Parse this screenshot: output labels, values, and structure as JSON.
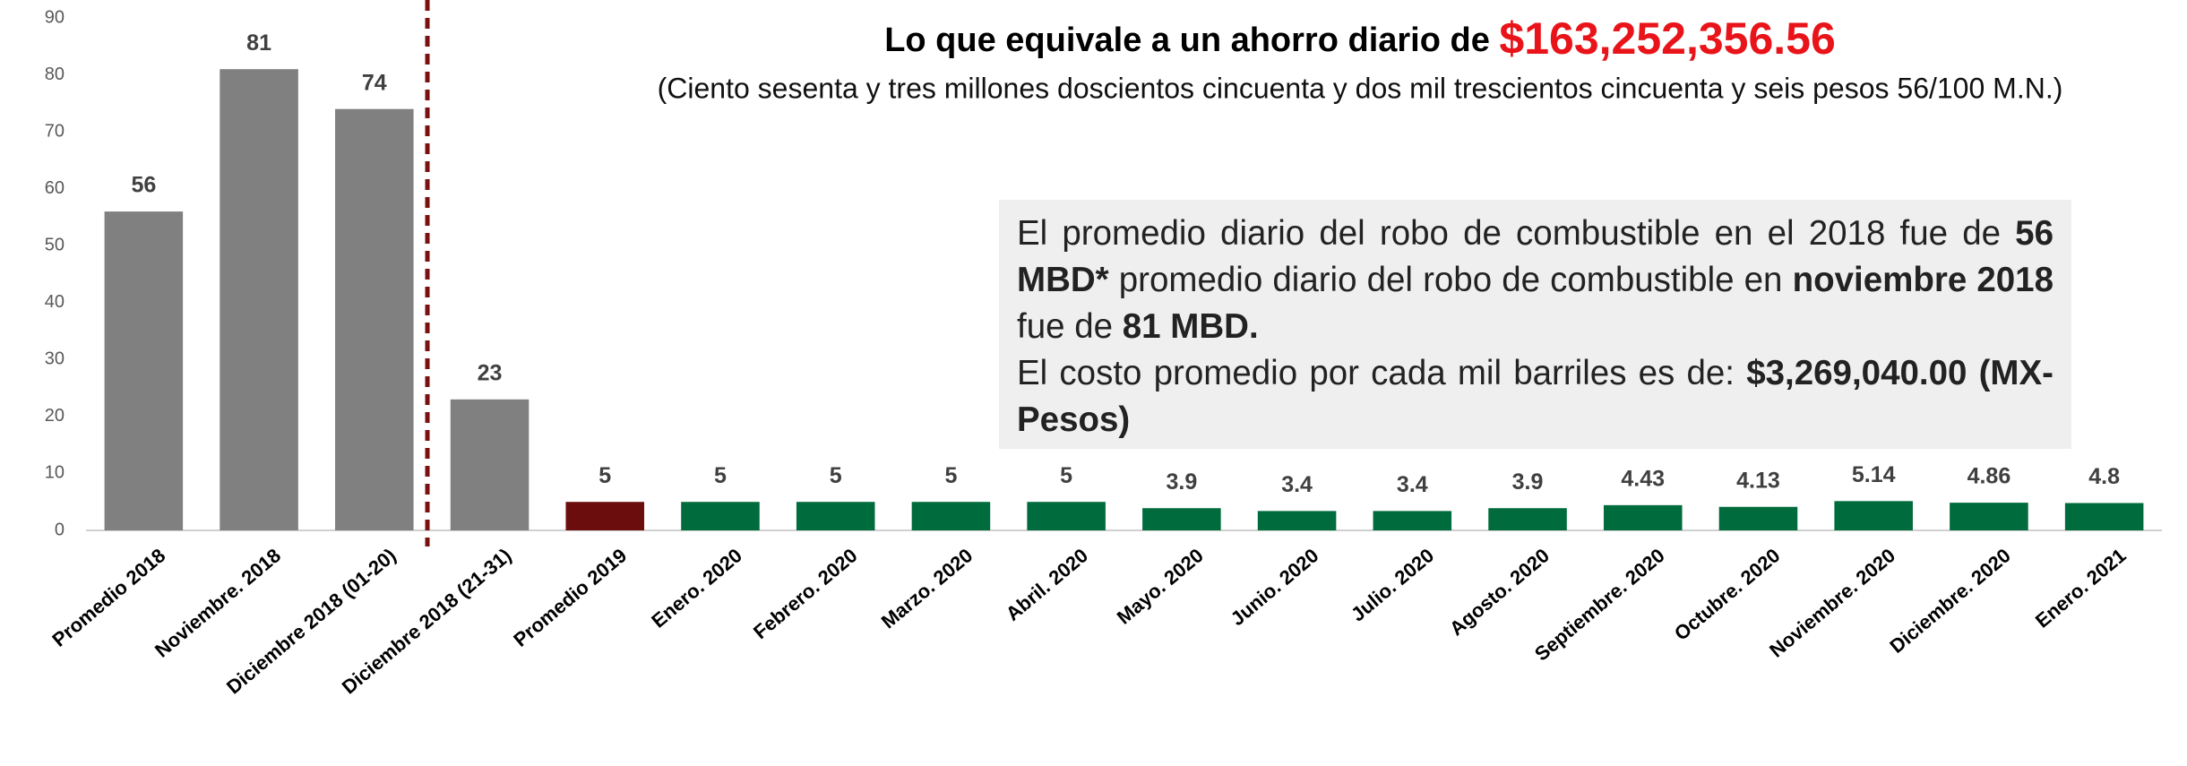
{
  "chart_data": {
    "type": "bar",
    "title": {
      "text": "Lo que equivale a un ahorro diario de ",
      "amount": "$163,252,356.56"
    },
    "subtitle": "(Ciento sesenta y tres millones doscientos cincuenta y dos mil trescientos cincuenta y seis pesos 56/100 M.N.)",
    "note": {
      "paragraph1": [
        "El promedio diario del robo de combustible en el 2018 fue de ",
        "56 MBD*",
        " promedio diario del robo de combustible en ",
        "noviembre 2018",
        " fue de ",
        "81 MBD."
      ],
      "paragraph2": [
        "El costo promedio por cada mil barriles es de: ",
        "$3,269,040.00  (MX-Pesos)"
      ]
    },
    "categories": [
      "Promedio 2018",
      "Noviembre. 2018",
      "Diciembre 2018 (01-20)",
      "Diciembre 2018 (21-31)",
      "Promedio 2019",
      "Enero. 2020",
      "Febrero. 2020",
      "Marzo. 2020",
      "Abril. 2020",
      "Mayo. 2020",
      "Junio. 2020",
      "Julio. 2020",
      "Agosto. 2020",
      "Septiembre. 2020",
      "Octubre. 2020",
      "Noviembre. 2020",
      "Diciembre. 2020",
      "Enero. 2021"
    ],
    "values": [
      56,
      81,
      74,
      23,
      5,
      5,
      5,
      5,
      5,
      3.9,
      3.4,
      3.4,
      3.9,
      4.43,
      4.13,
      5.14,
      4.86,
      4.8
    ],
    "colors": [
      "#808080",
      "#808080",
      "#808080",
      "#808080",
      "#6b0d0d",
      "#006b3c",
      "#006b3c",
      "#006b3c",
      "#006b3c",
      "#006b3c",
      "#006b3c",
      "#006b3c",
      "#006b3c",
      "#006b3c",
      "#006b3c",
      "#006b3c",
      "#006b3c",
      "#006b3c"
    ],
    "ylim": [
      0,
      90
    ],
    "yticks": [
      0,
      10,
      20,
      30,
      40,
      50,
      60,
      70,
      80,
      90
    ],
    "grid": false
  }
}
